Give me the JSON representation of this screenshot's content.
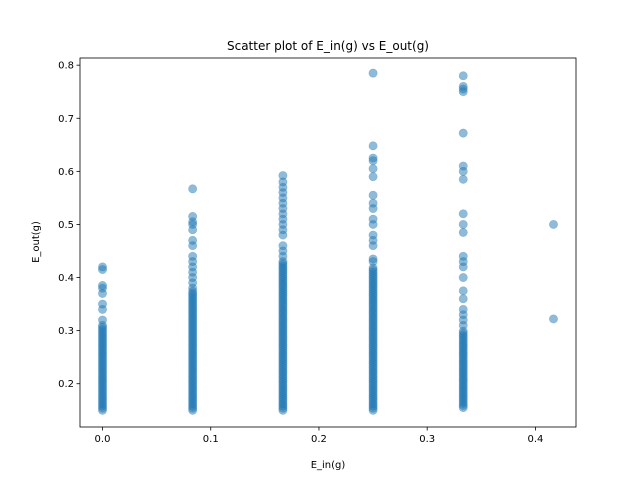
{
  "chart_data": {
    "type": "scatter",
    "title": "Scatter plot of E_in(g) vs E_out(g)",
    "xlabel": "E_in(g)",
    "ylabel": "E_out(g)",
    "xlim": [
      -0.0208,
      0.4375
    ],
    "ylim": [
      0.1185,
      0.8135
    ],
    "xticks": [
      0.0,
      0.1,
      0.2,
      0.3,
      0.4
    ],
    "yticks": [
      0.2,
      0.3,
      0.4,
      0.5,
      0.6,
      0.7,
      0.8
    ],
    "grid": false,
    "legend": "none",
    "marker_color": "#1f77b4",
    "marker_alpha": 0.5,
    "series": [
      {
        "values_by_x": [
          {
            "x": 0.0,
            "y_dense_range": [
              0.15,
              0.31
            ],
            "y_extra": [
              0.32,
              0.34,
              0.35,
              0.37,
              0.38,
              0.385,
              0.415,
              0.42
            ]
          },
          {
            "x": 0.0833,
            "y_dense_range": [
              0.15,
              0.375
            ],
            "y_extra": [
              0.38,
              0.39,
              0.4,
              0.41,
              0.42,
              0.43,
              0.44,
              0.46,
              0.47,
              0.49,
              0.5,
              0.505,
              0.515,
              0.567
            ]
          },
          {
            "x": 0.1667,
            "y_dense_range": [
              0.15,
              0.43
            ],
            "y_extra": [
              0.44,
              0.45,
              0.46,
              0.48,
              0.49,
              0.5,
              0.51,
              0.52,
              0.53,
              0.54,
              0.55,
              0.56,
              0.57,
              0.58,
              0.592
            ]
          },
          {
            "x": 0.25,
            "y_dense_range": [
              0.15,
              0.42
            ],
            "y_extra": [
              0.43,
              0.435,
              0.46,
              0.47,
              0.48,
              0.5,
              0.51,
              0.53,
              0.54,
              0.555,
              0.59,
              0.605,
              0.62,
              0.625,
              0.648,
              0.785
            ]
          },
          {
            "x": 0.3333,
            "y_dense_range": [
              0.155,
              0.3
            ],
            "y_extra": [
              0.31,
              0.32,
              0.33,
              0.34,
              0.36,
              0.375,
              0.4,
              0.42,
              0.43,
              0.44,
              0.485,
              0.5,
              0.52,
              0.585,
              0.6,
              0.61,
              0.672,
              0.75,
              0.755,
              0.76,
              0.78
            ]
          },
          {
            "x": 0.4167,
            "y_dense_range": null,
            "y_extra": [
              0.322,
              0.5
            ]
          }
        ]
      }
    ]
  }
}
